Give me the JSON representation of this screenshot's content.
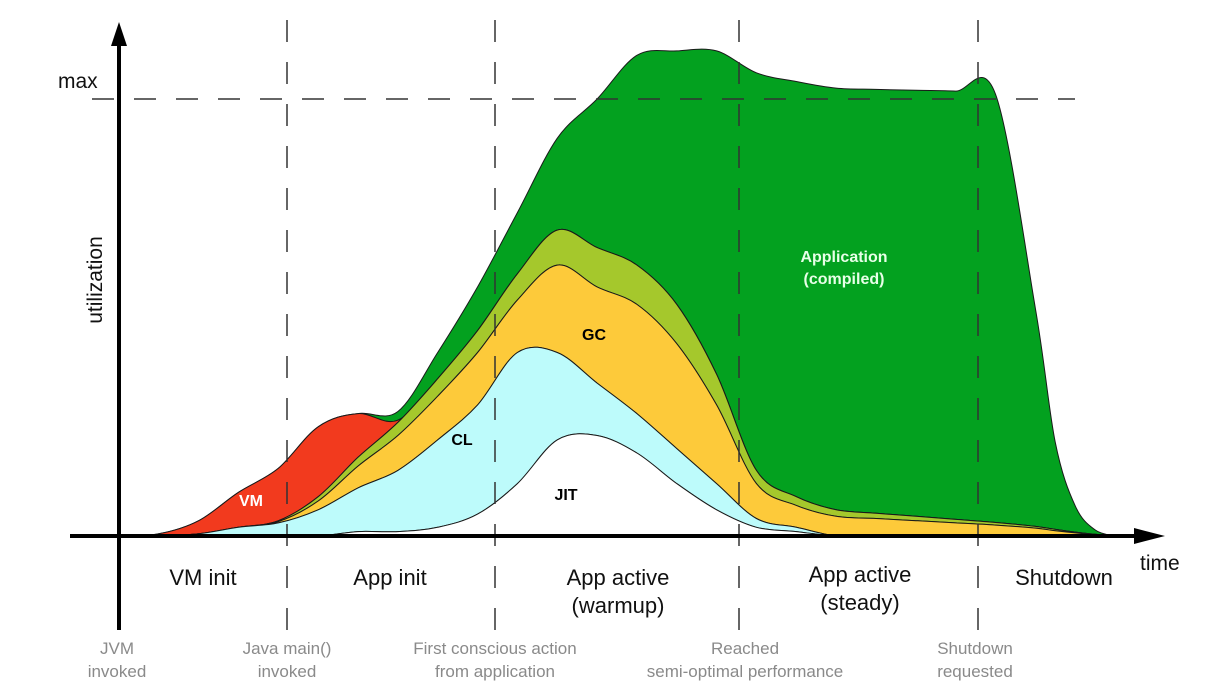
{
  "chart_data": {
    "type": "area",
    "title": "",
    "xlabel": "time",
    "ylabel": "utilization",
    "y_max_label": "max",
    "ylim": [
      0,
      1
    ],
    "xlim": [
      0,
      100
    ],
    "grid": false,
    "legend": "none (labels inside areas)",
    "x": [
      0,
      4,
      8,
      12,
      16,
      20,
      24,
      28,
      32,
      36,
      40,
      44,
      48,
      52,
      56,
      60,
      64,
      68,
      72,
      76,
      80,
      84,
      88,
      92,
      94,
      96,
      98,
      100
    ],
    "series": [
      {
        "name": "JIT",
        "label": "JIT",
        "color": "#ffffff",
        "text_color": "#000000",
        "values": [
          0,
          0,
          0,
          0,
          0,
          0,
          0.01,
          0.01,
          0.02,
          0.05,
          0.12,
          0.22,
          0.23,
          0.19,
          0.12,
          0.06,
          0.02,
          0.01,
          0,
          0,
          0,
          0,
          0,
          0,
          0,
          0,
          0,
          0
        ]
      },
      {
        "name": "CL",
        "label": "CL",
        "color": "#bdfbfb",
        "text_color": "#000000",
        "values": [
          0,
          0,
          0.005,
          0.02,
          0.03,
          0.06,
          0.1,
          0.14,
          0.2,
          0.25,
          0.3,
          0.2,
          0.12,
          0.09,
          0.08,
          0.06,
          0.02,
          0.01,
          0,
          0,
          0,
          0,
          0,
          0,
          0,
          0,
          0,
          0
        ]
      },
      {
        "name": "GC",
        "label": "GC",
        "color": "#fdca3a",
        "text_color": "#000000",
        "values": [
          0,
          0,
          0,
          0,
          0.003,
          0.02,
          0.05,
          0.08,
          0.1,
          0.12,
          0.12,
          0.2,
          0.22,
          0.25,
          0.24,
          0.18,
          0.08,
          0.05,
          0.045,
          0.04,
          0.035,
          0.03,
          0.025,
          0.018,
          0.012,
          0.007,
          0.003,
          0
        ]
      },
      {
        "name": "GC (other)",
        "label": "",
        "color": "#a5c82c",
        "text_color": "#000000",
        "values": [
          0,
          0,
          0,
          0,
          0.002,
          0.01,
          0.02,
          0.03,
          0.04,
          0.05,
          0.06,
          0.08,
          0.09,
          0.09,
          0.09,
          0.07,
          0.03,
          0.02,
          0.015,
          0.012,
          0.01,
          0.008,
          0.006,
          0.004,
          0.003,
          0.002,
          0.001,
          0
        ]
      },
      {
        "name": "VM",
        "label": "VM",
        "color": "#f23a1e",
        "text_color": "#ffffff",
        "values": [
          0,
          0.005,
          0.03,
          0.08,
          0.12,
          0.16,
          0.1,
          0.005,
          0,
          0,
          0,
          0,
          0,
          0,
          0,
          0,
          0,
          0,
          0,
          0,
          0,
          0,
          0,
          0,
          0,
          0,
          0,
          0
        ]
      },
      {
        "name": "Application (compiled)",
        "label": "Application\n(compiled)",
        "color": "#03a11f",
        "text_color": "#e8ffe8",
        "values": [
          0,
          0,
          0,
          0,
          0,
          0,
          0,
          0.02,
          0.06,
          0.1,
          0.14,
          0.21,
          0.34,
          0.48,
          0.58,
          0.74,
          0.91,
          0.95,
          0.965,
          0.97,
          0.975,
          0.98,
          0.98,
          0.5,
          0.2,
          0.06,
          0.01,
          0
        ]
      }
    ],
    "phases": [
      {
        "label": "VM init"
      },
      {
        "label": "App init"
      },
      {
        "label": "App active",
        "sub": "(warmup)"
      },
      {
        "label": "App active",
        "sub": "(steady)"
      },
      {
        "label": "Shutdown"
      }
    ],
    "events": [
      {
        "line1": "JVM",
        "line2": "invoked",
        "x": 0
      },
      {
        "line1": "Java main()",
        "line2": "invoked",
        "x": 17
      },
      {
        "line1": "First conscious action",
        "line2": "from application",
        "x": 38
      },
      {
        "line1": "Reached",
        "line2": "semi-optimal performance",
        "x": 63
      },
      {
        "line1": "Shutdown",
        "line2": "requested",
        "x": 87
      }
    ],
    "axis_color": "#000000",
    "dash_color": "#333333"
  }
}
